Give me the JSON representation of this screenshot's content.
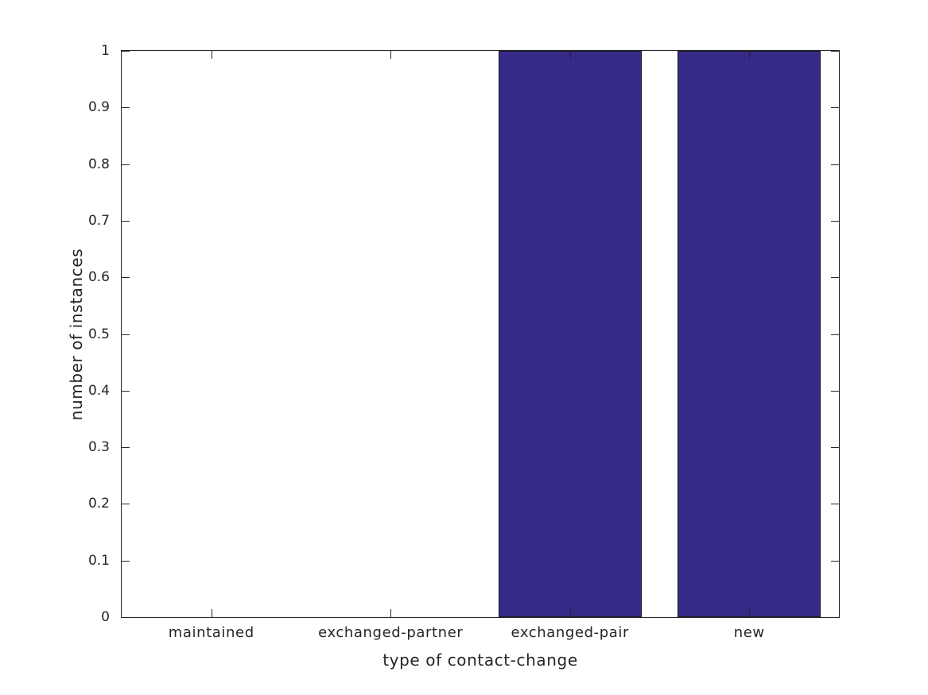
{
  "chart_data": {
    "type": "bar",
    "title": "",
    "xlabel": "type of contact-change",
    "ylabel": "number of instances",
    "categories": [
      "maintained",
      "exchanged-partner",
      "exchanged-pair",
      "new"
    ],
    "values": [
      0,
      0,
      1,
      1
    ],
    "ylim": [
      0,
      1
    ],
    "yticks": [
      0,
      0.1,
      0.2,
      0.3,
      0.4,
      0.5,
      0.6,
      0.7,
      0.8,
      0.9,
      1
    ],
    "ytick_labels": [
      "0",
      "0.1",
      "0.2",
      "0.3",
      "0.4",
      "0.5",
      "0.6",
      "0.7",
      "0.8",
      "0.9",
      "1"
    ],
    "bar_width_fraction": 0.8,
    "grid": false,
    "legend": null,
    "box": true,
    "tick_direction": "in",
    "colors": {
      "bar_fill": "#352A87",
      "bar_edge": "#1A1A1A",
      "axis": "#262626",
      "text": "#262626",
      "background": "#FFFFFF"
    }
  }
}
